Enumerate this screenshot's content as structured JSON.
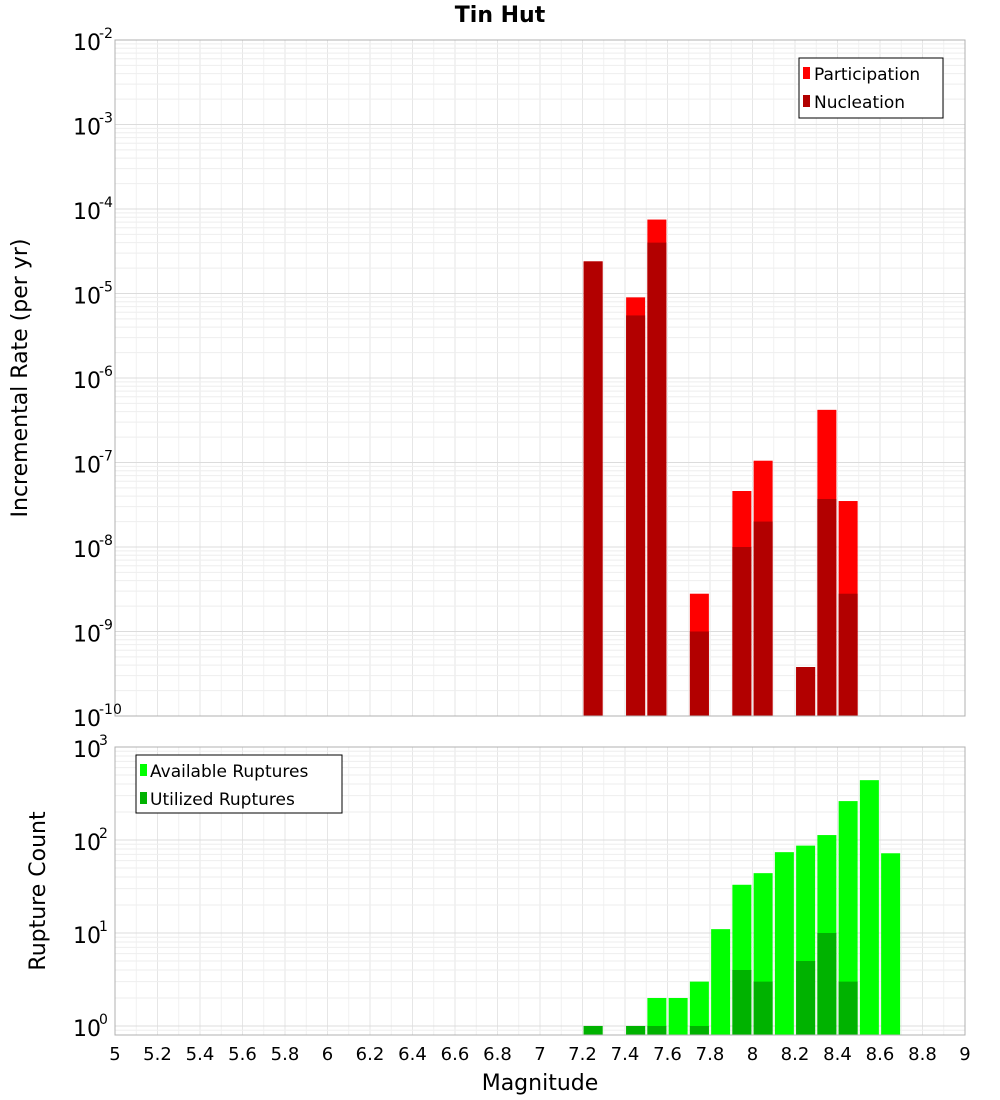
{
  "chart_data": [
    {
      "type": "bar",
      "title": "Tin Hut",
      "ylabel": "Incremental Rate (per yr)",
      "yscale": "log",
      "ylim": [
        1e-10,
        0.01
      ],
      "yticks": [
        {
          "base": "10",
          "exp": "-10"
        },
        {
          "base": "10",
          "exp": "-9"
        },
        {
          "base": "10",
          "exp": "-8"
        },
        {
          "base": "10",
          "exp": "-7"
        },
        {
          "base": "10",
          "exp": "-6"
        },
        {
          "base": "10",
          "exp": "-5"
        },
        {
          "base": "10",
          "exp": "-4"
        },
        {
          "base": "10",
          "exp": "-3"
        },
        {
          "base": "10",
          "exp": "-2"
        }
      ],
      "xlim": [
        5,
        9
      ],
      "grid": true,
      "legend": {
        "placement": "top-right",
        "entries": [
          "Participation",
          "Nucleation"
        ]
      },
      "series": [
        {
          "name": "Participation",
          "color": "#ff0000",
          "x": [
            7.25,
            7.45,
            7.55,
            7.75,
            7.95,
            8.05,
            8.25,
            8.35,
            8.45
          ],
          "values": [
            2.4e-05,
            9e-06,
            7.5e-05,
            2.8e-09,
            4.6e-08,
            1.05e-07,
            3.8e-10,
            4.2e-07,
            3.5e-08
          ]
        },
        {
          "name": "Nucleation",
          "color": "#b20000",
          "x": [
            7.25,
            7.45,
            7.55,
            7.75,
            7.95,
            8.05,
            8.25,
            8.35,
            8.45
          ],
          "values": [
            2.4e-05,
            5.5e-06,
            4e-05,
            1e-09,
            1e-08,
            2e-08,
            3.8e-10,
            3.7e-08,
            2.8e-09
          ]
        }
      ]
    },
    {
      "type": "bar",
      "ylabel": "Rupture Count",
      "xlabel": "Magnitude",
      "yscale": "log",
      "ylim": [
        0.8,
        1000
      ],
      "yticks": [
        {
          "base": "10",
          "exp": "0"
        },
        {
          "base": "10",
          "exp": "1"
        },
        {
          "base": "10",
          "exp": "2"
        },
        {
          "base": "10",
          "exp": "3"
        }
      ],
      "xlim": [
        5,
        9
      ],
      "xticks": [
        "5",
        "5.2",
        "5.4",
        "5.6",
        "5.8",
        "6",
        "6.2",
        "6.4",
        "6.6",
        "6.8",
        "7",
        "7.2",
        "7.4",
        "7.6",
        "7.8",
        "8",
        "8.2",
        "8.4",
        "8.6",
        "8.8",
        "9"
      ],
      "grid": true,
      "legend": {
        "placement": "top-left",
        "entries": [
          "Available Ruptures",
          "Utilized Ruptures"
        ]
      },
      "series": [
        {
          "name": "Available Ruptures",
          "color": "#00ff00",
          "x": [
            7.25,
            7.45,
            7.55,
            7.65,
            7.75,
            7.85,
            7.95,
            8.05,
            8.15,
            8.25,
            8.35,
            8.45,
            8.55,
            8.65
          ],
          "values": [
            1,
            1,
            2,
            2,
            3,
            11,
            33,
            44,
            74,
            87,
            113,
            262,
            440,
            72
          ]
        },
        {
          "name": "Utilized Ruptures",
          "color": "#00b200",
          "x": [
            7.25,
            7.45,
            7.55,
            7.75,
            7.95,
            8.05,
            8.25,
            8.35,
            8.45
          ],
          "values": [
            1,
            1,
            1,
            1,
            4,
            3,
            5,
            10,
            3
          ]
        }
      ]
    }
  ]
}
